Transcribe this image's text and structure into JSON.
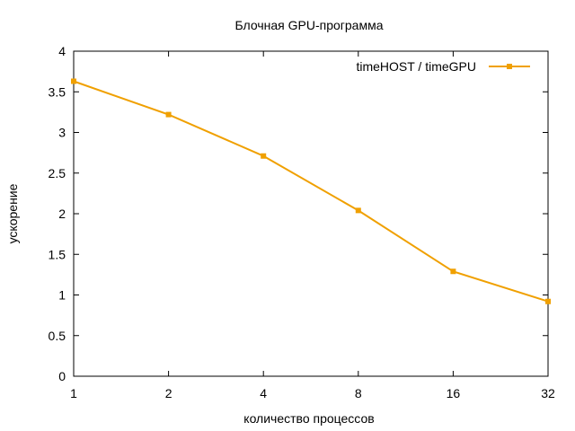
{
  "chart_data": {
    "type": "line",
    "title": "Блочная GPU-программа",
    "xlabel": "количество процессов",
    "ylabel": "ускорение",
    "x_scale": "log2",
    "x": [
      1,
      2,
      4,
      8,
      16,
      32
    ],
    "x_ticks": [
      "1",
      "2",
      "4",
      "8",
      "16",
      "32"
    ],
    "y_ticks": [
      "0",
      "0.5",
      "1",
      "1.5",
      "2",
      "2.5",
      "3",
      "3.5",
      "4"
    ],
    "ylim": [
      0,
      4
    ],
    "grid": false,
    "legend_position": "top-right",
    "series": [
      {
        "name": "timeHOST / timeGPU",
        "color": "#f0a000",
        "values": [
          3.63,
          3.22,
          2.71,
          2.04,
          1.29,
          0.92
        ]
      }
    ]
  }
}
